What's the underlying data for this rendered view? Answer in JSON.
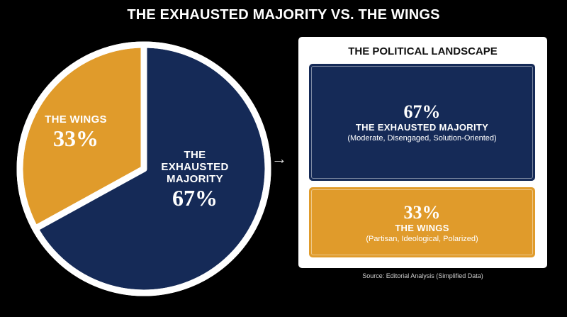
{
  "title": "THE EXHAUSTED MAJORITY VS. THE WINGS",
  "colors": {
    "majority": "#152a57",
    "wings": "#e09b2b",
    "background": "#000000",
    "border": "#ffffff"
  },
  "chart_data": {
    "type": "pie",
    "title": "THE EXHAUSTED MAJORITY VS. THE WINGS",
    "slices": [
      {
        "label": "THE EXHAUSTED MAJORITY",
        "value": 67,
        "display": "67%",
        "color": "#152a57"
      },
      {
        "label": "THE WINGS",
        "value": 33,
        "display": "33%",
        "color": "#e09b2b"
      }
    ]
  },
  "pie_labels": {
    "wings_line1": "THE WINGS",
    "wings_pct": "33%",
    "majority_line1": "THE",
    "majority_line2": "EXHAUSTED",
    "majority_line3": "MAJORITY",
    "majority_pct": "67%"
  },
  "arrow": "→",
  "panel": {
    "title": "THE POLITICAL LANDSCAPE",
    "majority": {
      "pct": "67%",
      "name": "THE EXHAUSTED MAJORITY",
      "desc": "(Moderate, Disengaged, Solution-Oriented)"
    },
    "wings": {
      "pct": "33%",
      "name": "THE WINGS",
      "desc": "(Partisan, Ideological, Polarized)"
    }
  },
  "source": "Source: Editorial Analysis (Simplified Data)"
}
